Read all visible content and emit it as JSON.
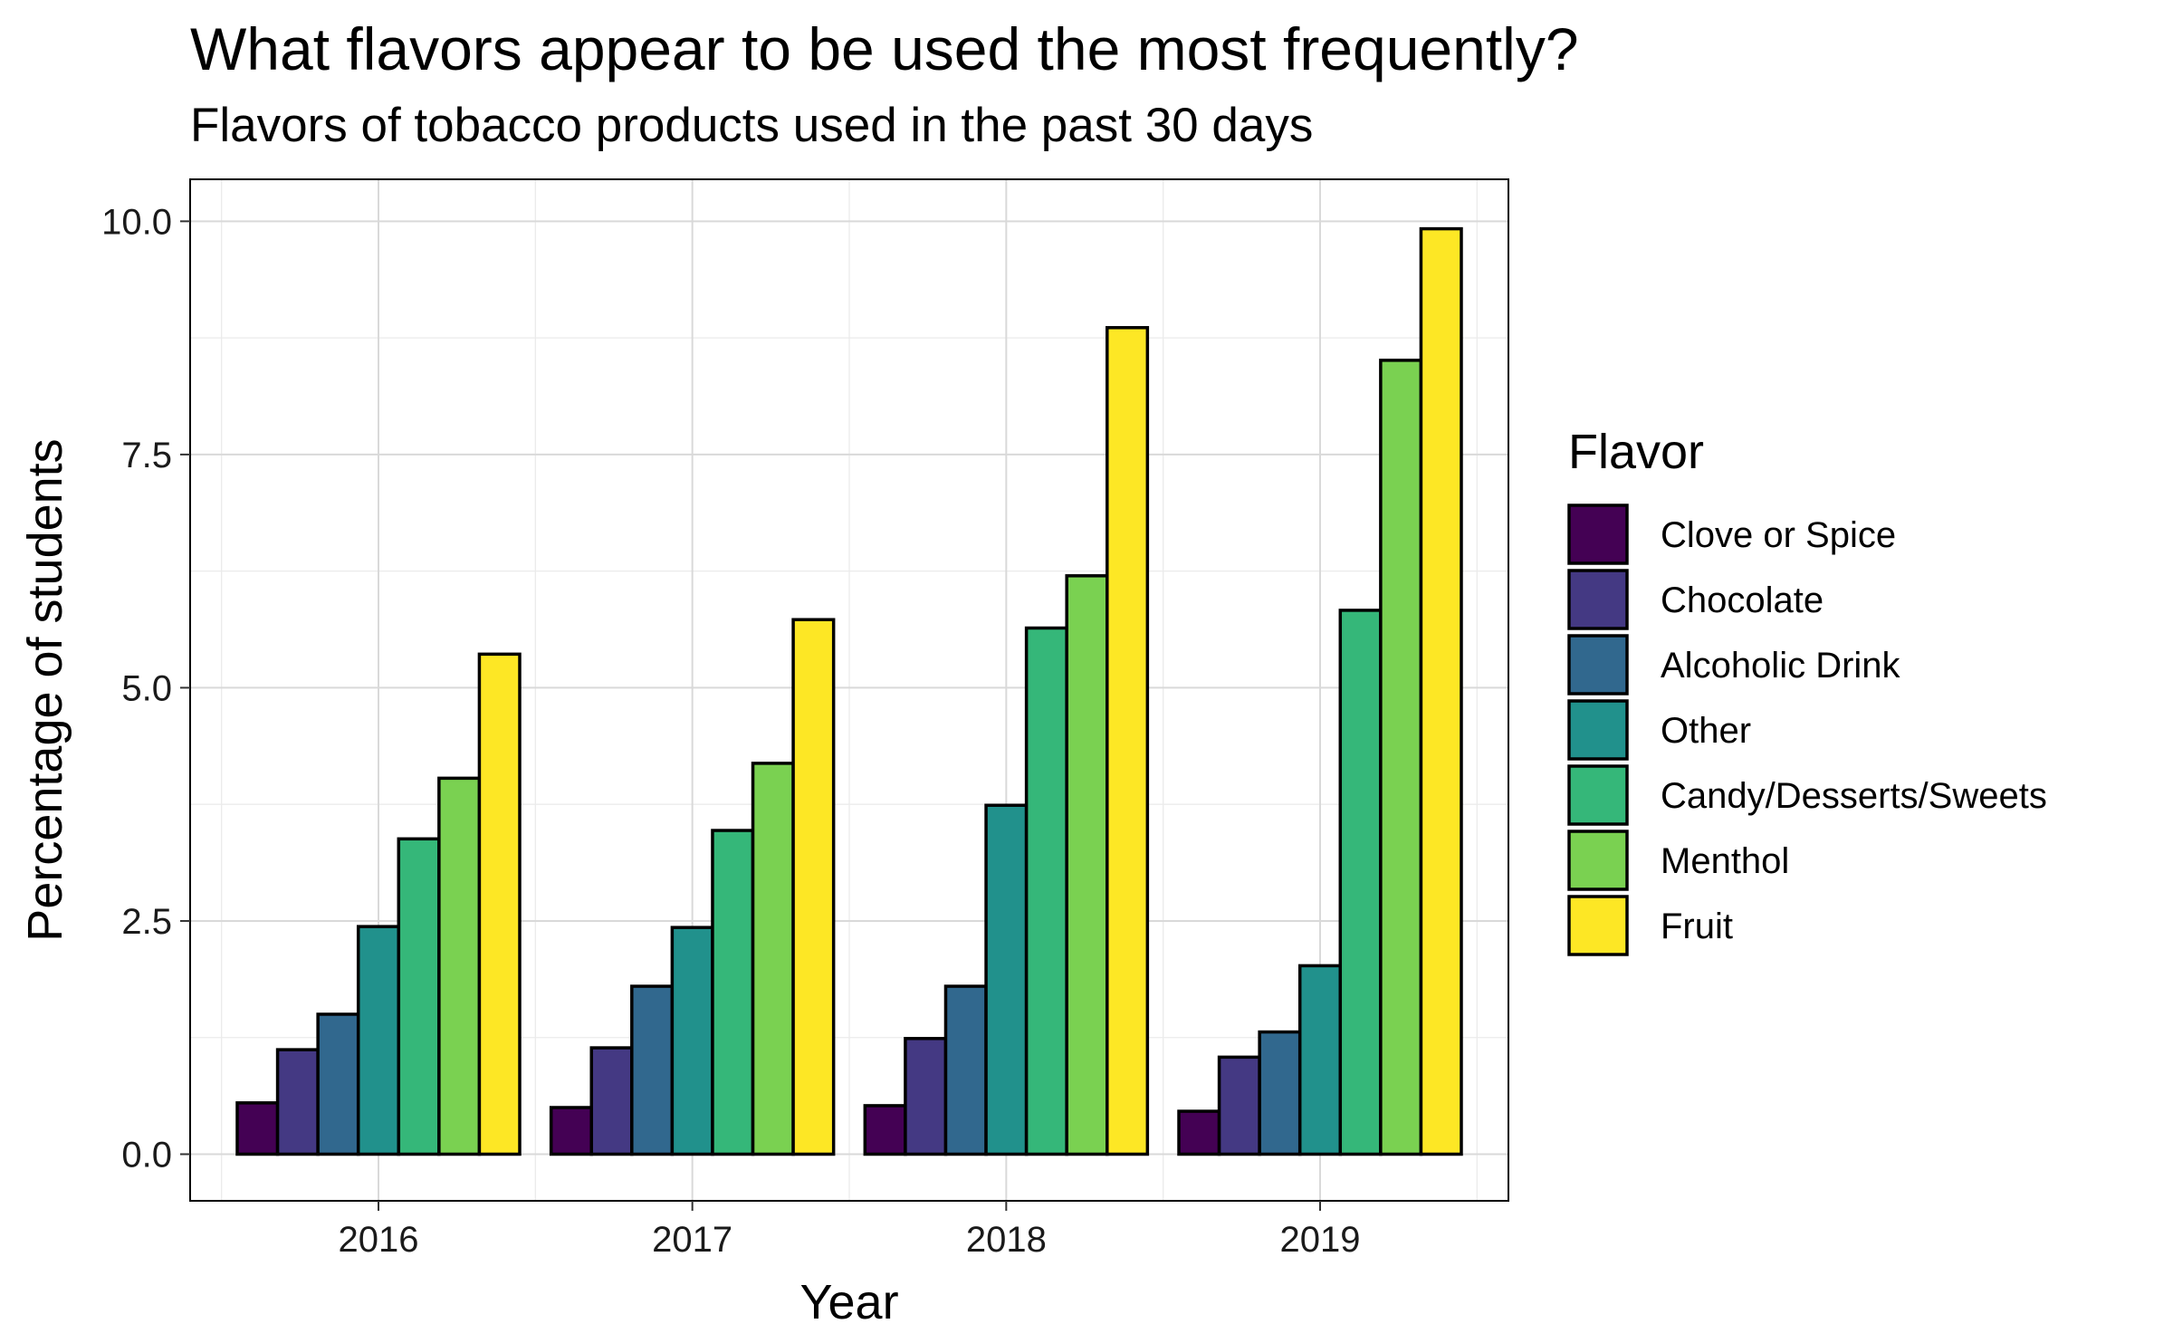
{
  "chart_data": {
    "type": "bar",
    "title": "What flavors appear to be used the most frequently?",
    "subtitle": "Flavors of tobacco products used in the past 30 days",
    "xlabel": "Year",
    "ylabel": "Percentage of students",
    "ylim": [
      -0.5,
      10.45
    ],
    "yticks": [
      "0.0",
      "2.5",
      "5.0",
      "7.5",
      "10.0"
    ],
    "ytick_values": [
      0,
      2.5,
      5,
      7.5,
      10
    ],
    "categories": [
      "2016",
      "2017",
      "2018",
      "2019"
    ],
    "grid": true,
    "legend_position": "right",
    "legend_title": "Flavor",
    "series": [
      {
        "name": "Clove or Spice",
        "color": "#440154",
        "values": [
          0.55,
          0.5,
          0.52,
          0.46
        ]
      },
      {
        "name": "Chocolate",
        "color": "#443983",
        "values": [
          1.12,
          1.14,
          1.24,
          1.04
        ]
      },
      {
        "name": "Alcoholic Drink",
        "color": "#31688e",
        "values": [
          1.5,
          1.8,
          1.8,
          1.31
        ]
      },
      {
        "name": "Other",
        "color": "#21918c",
        "values": [
          2.44,
          2.43,
          3.74,
          2.02
        ]
      },
      {
        "name": "Candy/Desserts/Sweets",
        "color": "#35b779",
        "values": [
          3.38,
          3.47,
          5.64,
          5.83
        ]
      },
      {
        "name": "Menthol",
        "color": "#7ad151",
        "values": [
          4.03,
          4.19,
          6.2,
          8.51
        ]
      },
      {
        "name": "Fruit",
        "color": "#fde725",
        "values": [
          5.36,
          5.73,
          8.86,
          9.92
        ]
      }
    ]
  }
}
